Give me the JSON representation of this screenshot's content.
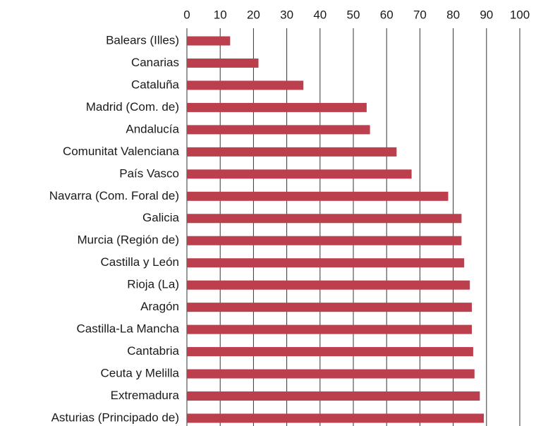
{
  "chart_data": {
    "type": "bar",
    "orientation": "horizontal",
    "categories": [
      "Balears (Illes)",
      "Canarias",
      "Cataluña",
      "Madrid (Com. de)",
      "Andalucía",
      "Comunitat Valenciana",
      "País Vasco",
      "Navarra (Com. Foral de)",
      "Galicia",
      "Murcia (Región de)",
      "Castilla y León",
      "Rioja (La)",
      "Aragón",
      "Castilla-La Mancha",
      "Cantabria",
      "Ceuta y Melilla",
      "Extremadura",
      "Asturias (Principado de)"
    ],
    "values": [
      13,
      21.5,
      35,
      54,
      55,
      63,
      67.5,
      78.5,
      82.5,
      82.5,
      83.3,
      85,
      85.6,
      85.6,
      86,
      86.4,
      88,
      89.2
    ],
    "color": "#bc3f4d",
    "xlim": [
      0,
      100
    ],
    "xticks": [
      0,
      10,
      20,
      30,
      40,
      50,
      60,
      70,
      80,
      90,
      100
    ],
    "grid": true,
    "axis_position": "top"
  }
}
